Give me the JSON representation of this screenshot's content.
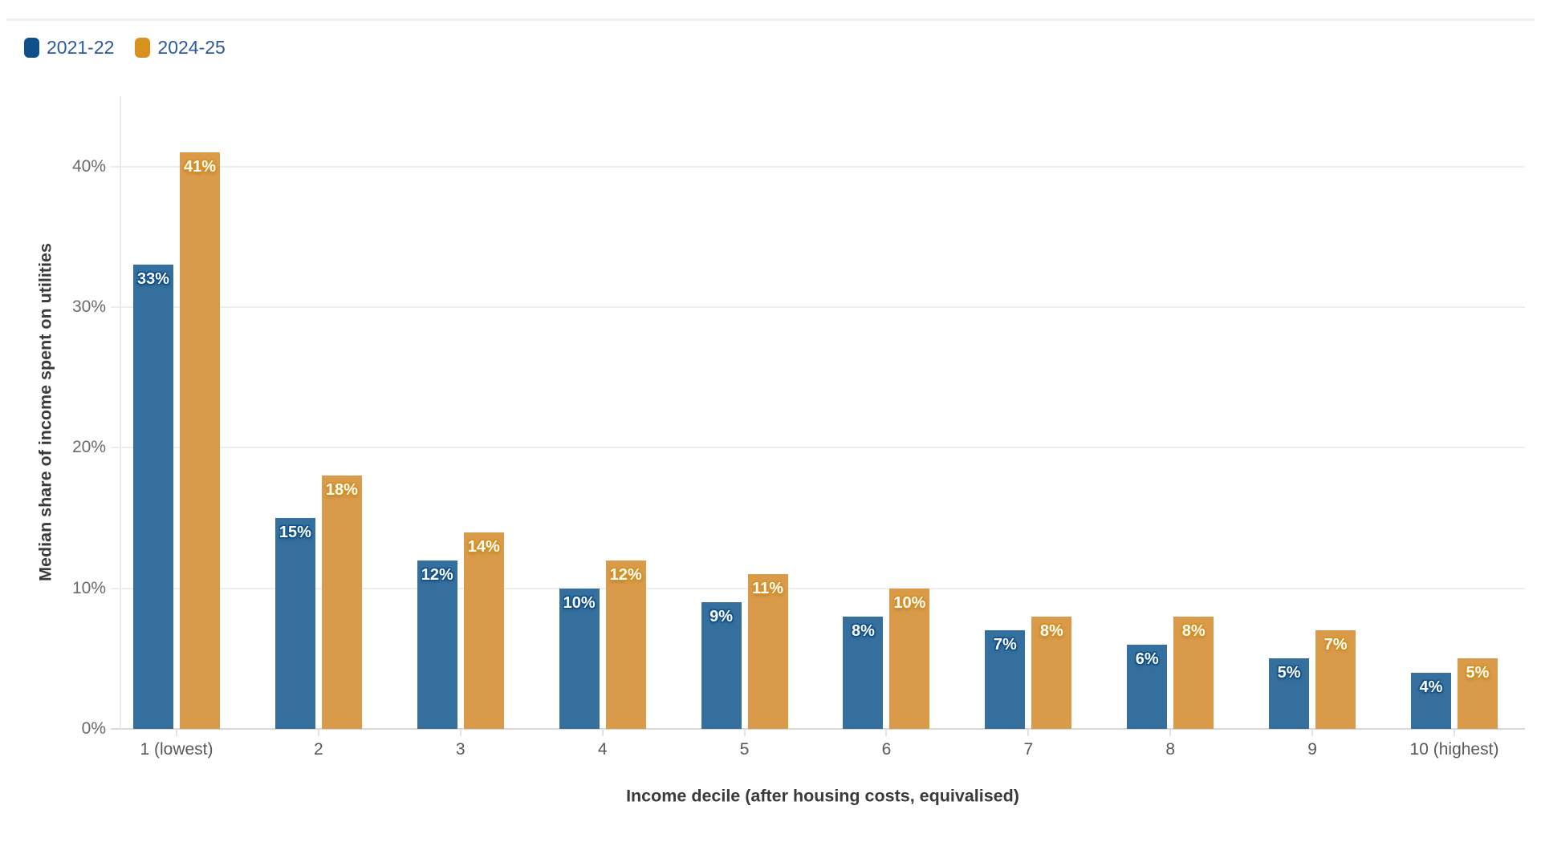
{
  "legend": {
    "items": [
      {
        "label": "2021-22",
        "color": "#0f4f8c"
      },
      {
        "label": "2024-25",
        "color": "#d8901f"
      }
    ]
  },
  "chart_data": {
    "type": "bar",
    "title": "",
    "categories": [
      "1 (lowest)",
      "2",
      "3",
      "4",
      "5",
      "6",
      "7",
      "8",
      "9",
      "10 (highest)"
    ],
    "series": [
      {
        "name": "2021-22",
        "color": "#0f4f8c",
        "bar_color": "#346f9e",
        "values": [
          33,
          15,
          12,
          10,
          9,
          8,
          7,
          6,
          5,
          4
        ]
      },
      {
        "name": "2024-25",
        "color": "#d8901f",
        "bar_color": "#d99b49",
        "values": [
          41,
          18,
          14,
          12,
          11,
          10,
          8,
          8,
          7,
          5
        ]
      }
    ],
    "data_label_suffix": "%",
    "xlabel": "Income decile (after housing costs, equivalised)",
    "ylabel": "Median share of income spent on utilities",
    "y_ticks": [
      0,
      10,
      20,
      30,
      40
    ],
    "y_tick_suffix": "%",
    "ylim": [
      0,
      45
    ],
    "grid": true,
    "legend_position": "top-left"
  }
}
